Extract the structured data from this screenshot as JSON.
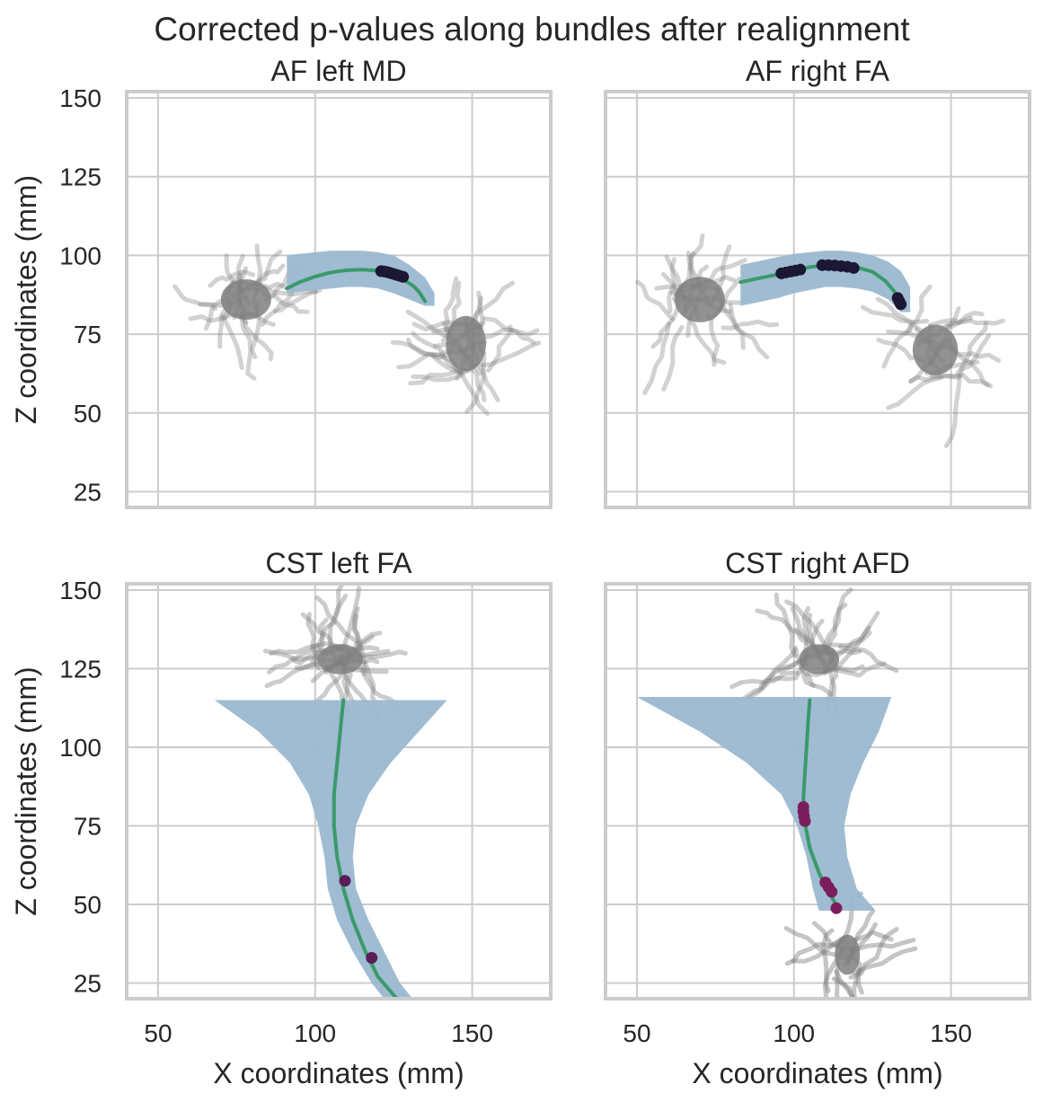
{
  "title": "Corrected p-values along bundles after realignment",
  "colors": {
    "streamline_gray": "#7f7f7f",
    "bundle_blue": "#9ab8d0",
    "profile_green": "#3a9a6a",
    "grid": "#cccccc",
    "frame": "#cccccc",
    "text": "#262626",
    "sig_dark": "#1c1733",
    "sig_purple": "#5a1d57",
    "sig_magenta": "#7a1f5c",
    "sig_red": "#d81b4f",
    "sig_orange": "#e9865a"
  },
  "chart_data": [
    {
      "type": "scatter",
      "title": "AF left MD",
      "xlabel": "",
      "ylabel": "Z coordinates (mm)",
      "xlim": [
        40,
        175
      ],
      "ylim": [
        20,
        152
      ],
      "xticks": [
        50,
        100,
        150
      ],
      "yticks": [
        25,
        50,
        75,
        100,
        125,
        150
      ],
      "grid": true,
      "show_xticklabels": false,
      "show_yticklabels": true,
      "bundle_region": {
        "x": [
          91,
          95,
          100,
          105,
          110,
          115,
          120,
          125,
          130,
          135,
          138
        ],
        "upper": [
          100,
          100.5,
          101,
          101.5,
          101.5,
          101.5,
          101,
          100,
          97,
          93,
          88
        ],
        "lower": [
          88,
          88.5,
          89,
          89.5,
          90,
          90,
          89.5,
          88,
          86,
          84,
          84
        ]
      },
      "profile": {
        "x": [
          91,
          95,
          100,
          105,
          110,
          115,
          120,
          125,
          128,
          131,
          133,
          134,
          135
        ],
        "z": [
          89.5,
          91.5,
          93.3,
          94.6,
          95.3,
          95.5,
          95.2,
          93.8,
          92.3,
          90.5,
          88.5,
          87,
          85.5
        ]
      },
      "significant_points": {
        "x": [
          121,
          122,
          123,
          124,
          125,
          126,
          127,
          128
        ],
        "z": [
          95,
          94.9,
          94.7,
          94.4,
          94.1,
          93.8,
          93.5,
          93.2
        ],
        "color": "sig_dark"
      },
      "streamline_clusters": [
        {
          "cx": 78,
          "cz": 86,
          "sx": 10,
          "sz": 8,
          "count": 24,
          "alpha": 0.35
        },
        {
          "cx": 148,
          "cz": 72,
          "sx": 8,
          "sz": 11,
          "count": 26,
          "alpha": 0.35
        }
      ]
    },
    {
      "type": "scatter",
      "title": "AF right FA",
      "xlabel": "",
      "ylabel": "",
      "xlim": [
        40,
        175
      ],
      "ylim": [
        20,
        152
      ],
      "xticks": [
        50,
        100,
        150
      ],
      "yticks": [
        25,
        50,
        75,
        100,
        125,
        150
      ],
      "grid": true,
      "show_xticklabels": false,
      "show_yticklabels": false,
      "bundle_region": {
        "x": [
          83,
          88,
          95,
          100,
          105,
          110,
          115,
          120,
          125,
          130,
          134,
          137
        ],
        "upper": [
          97,
          98,
          99.5,
          100.5,
          101,
          101.5,
          101.5,
          101,
          100,
          98,
          95,
          90
        ],
        "lower": [
          84,
          85,
          86.5,
          88,
          89,
          90,
          90,
          89.5,
          88.5,
          86,
          82,
          82
        ]
      },
      "profile": {
        "x": [
          83,
          88,
          95,
          100,
          105,
          110,
          115,
          120,
          125,
          129,
          132,
          134
        ],
        "z": [
          91.5,
          92.6,
          94,
          95.3,
          96.3,
          96.9,
          96.8,
          96.2,
          94.8,
          92,
          88.5,
          84.5
        ]
      },
      "significant_points": {
        "x": [
          96,
          97.5,
          99,
          100.5,
          102,
          109,
          111,
          113,
          115,
          117,
          119,
          133,
          133.5,
          134
        ],
        "z": [
          94.3,
          94.6,
          94.9,
          95.2,
          95.5,
          96.9,
          96.9,
          96.8,
          96.6,
          96.4,
          96,
          86.5,
          85.5,
          84.5
        ],
        "color": "sig_dark"
      },
      "streamline_clusters": [
        {
          "cx": 70,
          "cz": 86,
          "sx": 10,
          "sz": 9,
          "count": 24,
          "alpha": 0.35
        },
        {
          "cx": 145,
          "cz": 70,
          "sx": 9,
          "sz": 10,
          "count": 22,
          "alpha": 0.35
        }
      ]
    },
    {
      "type": "scatter",
      "title": "CST left FA",
      "xlabel": "X coordinates (mm)",
      "ylabel": "Z coordinates (mm)",
      "xlim": [
        40,
        175
      ],
      "ylim": [
        20,
        152
      ],
      "xticks": [
        50,
        100,
        150
      ],
      "yticks": [
        25,
        50,
        75,
        100,
        125,
        150
      ],
      "grid": true,
      "show_xticklabels": true,
      "show_yticklabels": true,
      "bundle_region": {
        "z": [
          115,
          105,
          95,
          85,
          75,
          65,
          55,
          45,
          35,
          25,
          20
        ],
        "left": [
          68,
          82,
          92,
          98,
          101,
          103,
          104,
          107,
          112,
          118,
          122
        ],
        "right": [
          142,
          133,
          124,
          117,
          113,
          112,
          113,
          117,
          122,
          127,
          131
        ]
      },
      "profile": {
        "x": [
          109,
          108,
          107,
          106,
          106,
          107,
          109,
          112,
          116,
          120,
          126
        ],
        "z": [
          115,
          105,
          95,
          85,
          75,
          65,
          55,
          45,
          35,
          27,
          20
        ]
      },
      "significant_points": {
        "x": [
          109.5,
          118
        ],
        "z": [
          57.5,
          33
        ],
        "color": "sig_purple"
      },
      "streamline_clusters": [
        {
          "cx": 108,
          "cz": 128,
          "sx": 9,
          "sz": 6,
          "count": 30,
          "alpha": 0.4
        }
      ]
    },
    {
      "type": "scatter",
      "title": "CST right AFD",
      "xlabel": "X coordinates (mm)",
      "ylabel": "",
      "xlim": [
        40,
        175
      ],
      "ylim": [
        20,
        152
      ],
      "xticks": [
        50,
        100,
        150
      ],
      "yticks": [
        25,
        50,
        75,
        100,
        125,
        150
      ],
      "grid": true,
      "show_xticklabels": true,
      "show_yticklabels": false,
      "bundle_region": {
        "z": [
          116,
          105,
          95,
          85,
          75,
          65,
          55,
          48
        ],
        "left": [
          50,
          70,
          85,
          96,
          101,
          104,
          106,
          108
        ],
        "right": [
          131,
          127,
          122,
          118,
          116,
          117,
          120,
          126
        ]
      },
      "profile": {
        "x": [
          105,
          104.5,
          104,
          103.5,
          103,
          103.5,
          105,
          108,
          111,
          114
        ],
        "z": [
          115,
          108,
          100,
          92,
          84,
          76,
          68,
          60,
          54,
          49
        ]
      },
      "significant_points": {
        "x": [
          103,
          103,
          103.2,
          103.5,
          110,
          111,
          112,
          113.5
        ],
        "z": [
          81,
          79.5,
          78,
          76.5,
          57,
          55.5,
          54,
          48.8
        ],
        "color": "sig_magenta"
      },
      "streamline_clusters": [
        {
          "cx": 108,
          "cz": 128,
          "sx": 8,
          "sz": 6,
          "count": 26,
          "alpha": 0.4
        },
        {
          "cx": 117,
          "cz": 34,
          "sx": 5,
          "sz": 8,
          "count": 18,
          "alpha": 0.45
        }
      ]
    }
  ]
}
